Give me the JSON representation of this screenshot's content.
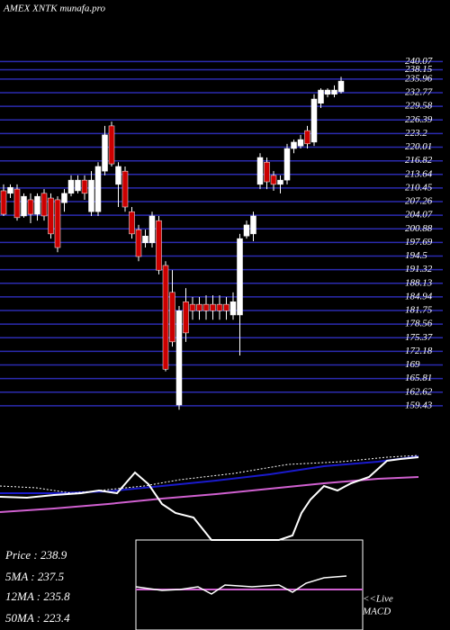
{
  "chart_data": {
    "type": "candlestick",
    "title": "AMEX XNTK munafa.pro",
    "up_color": "#ffffff",
    "down_color": "#cc0000",
    "grid_color": "#2b2bb0",
    "grid": true,
    "ylim": [
      157.5,
      254.5
    ],
    "yticks": [
      240.07,
      238.15,
      235.96,
      232.77,
      229.58,
      226.39,
      223.2,
      220.01,
      216.82,
      213.64,
      210.45,
      207.26,
      204.07,
      200.88,
      197.69,
      194.5,
      191.32,
      188.13,
      184.94,
      181.75,
      178.56,
      175.37,
      172.18,
      169,
      165.81,
      162.62,
      159.43
    ],
    "open": [
      209.8,
      209.2,
      210.2,
      203.9,
      207.7,
      204.3,
      209.2,
      208.1,
      207.7,
      207.0,
      209.2,
      209.8,
      212.3,
      204.9,
      204.9,
      214.4,
      225.0,
      211.3,
      214.4,
      204.9,
      200.7,
      197.6,
      197.6,
      202.8,
      192.3,
      186.0,
      159.6,
      183.8,
      183.2,
      183.2,
      183.2,
      183.2,
      183.2,
      183.2,
      180.7,
      180.7,
      199.2,
      199.7,
      211.3,
      216.5,
      213.4,
      211.3,
      212.3,
      219.7,
      220.3,
      223.9,
      221.2,
      230.3,
      232.4,
      232.4,
      233.0
    ],
    "high": [
      211.3,
      211.3,
      211.3,
      209.2,
      209.2,
      209.2,
      210.2,
      209.2,
      208.5,
      210.2,
      213.4,
      213.4,
      213.4,
      214.4,
      216.5,
      225.0,
      226.0,
      216.5,
      215.5,
      206.0,
      201.8,
      200.7,
      204.9,
      203.9,
      193.3,
      191.2,
      182.8,
      187.0,
      184.9,
      184.9,
      185.3,
      185.3,
      185.3,
      184.9,
      186.0,
      199.7,
      202.8,
      204.9,
      218.6,
      217.6,
      214.4,
      213.4,
      220.8,
      221.8,
      222.9,
      225.0,
      232.4,
      233.8,
      233.8,
      234.5,
      236.5
    ],
    "low": [
      203.9,
      208.1,
      202.8,
      203.5,
      202.2,
      202.8,
      202.8,
      198.6,
      195.4,
      204.9,
      208.5,
      209.2,
      207.7,
      203.9,
      203.9,
      213.4,
      215.5,
      206.0,
      204.9,
      198.6,
      193.3,
      196.5,
      196.5,
      190.2,
      167.5,
      173.3,
      158.5,
      174.4,
      179.6,
      179.6,
      179.6,
      179.6,
      179.6,
      179.6,
      179.6,
      171.2,
      198.6,
      198.0,
      210.2,
      210.2,
      209.8,
      209.2,
      211.3,
      218.6,
      219.7,
      219.7,
      220.3,
      229.2,
      231.7,
      231.7,
      232.6
    ],
    "close": [
      204.3,
      210.6,
      203.5,
      208.5,
      204.3,
      208.5,
      203.9,
      199.7,
      196.5,
      209.2,
      212.3,
      212.3,
      209.2,
      212.3,
      215.5,
      222.9,
      216.1,
      215.5,
      206.0,
      199.7,
      194.4,
      199.2,
      203.9,
      191.2,
      168.0,
      174.4,
      181.7,
      176.5,
      181.7,
      181.7,
      181.7,
      181.7,
      181.7,
      181.7,
      183.8,
      198.6,
      201.8,
      203.9,
      217.6,
      211.9,
      211.3,
      212.3,
      219.7,
      221.2,
      221.8,
      220.8,
      231.3,
      233.4,
      233.4,
      233.4,
      235.5
    ],
    "stats": [
      "Price    : 238.9",
      "5MA  : 237.5",
      "12MA : 235.8",
      "50MA : 223.4"
    ],
    "macd_note": [
      "<<Live",
      "MACD"
    ]
  }
}
